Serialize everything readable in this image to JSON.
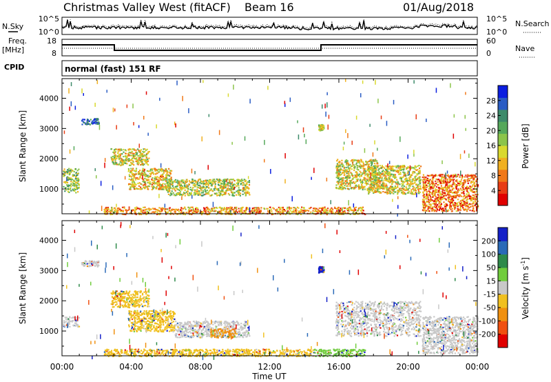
{
  "header": {
    "station": "Christmas Valley West (fitACF)",
    "beam": "Beam 16",
    "date": "01/Aug/2018"
  },
  "top_panels": {
    "nsky_label": "N.Sky",
    "nsearch_label": "N.Search",
    "noise_ticks": [
      "10^5",
      "10^0"
    ],
    "freq_label_1": "Freq.",
    "freq_label_2": "[MHz]",
    "freq_ticks": [
      "18",
      "8"
    ],
    "nave_label": "Nave",
    "nave_ticks": [
      "60",
      "0"
    ],
    "cpid_label": "CPID",
    "cpid_value": "normal (fast) 151 RF"
  },
  "chart_data": [
    {
      "type": "heatmap",
      "name": "power",
      "ylabel": "Slant Range [km]",
      "ylim": [
        180,
        4650
      ],
      "yticks": [
        "1000",
        "2000",
        "3000",
        "4000"
      ],
      "xlim_hours": [
        0,
        24
      ],
      "colorbar_label": "Power [dB]",
      "colorbar_ticks": [
        "28",
        "24",
        "20",
        "16",
        "12",
        "8",
        "4"
      ],
      "colorbar_colors": [
        "#0b1ee0",
        "#2a5cc4",
        "#3d8a6a",
        "#55a85a",
        "#8cc44a",
        "#d9d92e",
        "#f0b020",
        "#f07818",
        "#e83c14",
        "#e00000"
      ],
      "regions": [
        {
          "t0": 0.05,
          "t1": 0.95,
          "r0": 900,
          "r1": 1700,
          "v": 0.45
        },
        {
          "t0": 1.1,
          "t1": 2.1,
          "r0": 3150,
          "r1": 3350,
          "v": 0.15
        },
        {
          "t0": 2.8,
          "t1": 5.0,
          "r0": 1800,
          "r1": 2350,
          "v": 0.55
        },
        {
          "t0": 3.8,
          "t1": 6.3,
          "r0": 1000,
          "r1": 1700,
          "v": 0.6
        },
        {
          "t0": 6.0,
          "t1": 10.8,
          "r0": 800,
          "r1": 1350,
          "v": 0.5
        },
        {
          "t0": 14.8,
          "t1": 15.1,
          "r0": 2950,
          "r1": 3150,
          "v": 0.5
        },
        {
          "t0": 15.8,
          "t1": 18.2,
          "r0": 1000,
          "r1": 2000,
          "v": 0.55
        },
        {
          "t0": 17.6,
          "t1": 20.7,
          "r0": 850,
          "r1": 1800,
          "v": 0.55
        },
        {
          "t0": 20.8,
          "t1": 24.0,
          "r0": 280,
          "r1": 1500,
          "v": 0.75
        },
        {
          "t0": 2.4,
          "t1": 17.5,
          "r0": 180,
          "r1": 420,
          "v": 0.7
        }
      ]
    },
    {
      "type": "heatmap",
      "name": "velocity",
      "ylabel": "Slant Range [km]",
      "ylim": [
        180,
        4650
      ],
      "yticks": [
        "1000",
        "2000",
        "3000",
        "4000"
      ],
      "xlim_hours": [
        0,
        24
      ],
      "xticks": [
        "00:00",
        "04:00",
        "08:00",
        "12:00",
        "16:00",
        "20:00",
        "00:00"
      ],
      "xlabel": "Time UT",
      "colorbar_label": "Velocity [m s",
      "colorbar_label_exp": "-1",
      "colorbar_label_end": "]",
      "colorbar_ticks": [
        "200",
        "100",
        "50",
        "15",
        "-15",
        "-50",
        "-100",
        "-200"
      ],
      "colorbar_colors": [
        "#1420c8",
        "#2a6ab8",
        "#2e8a4a",
        "#70cc3c",
        "#c8c8c8",
        "#f0c020",
        "#f09010",
        "#f05010",
        "#e00000"
      ],
      "regions": [
        {
          "t0": 0.05,
          "t1": 0.95,
          "r0": 1150,
          "r1": 1500,
          "c": "#c8c8c8"
        },
        {
          "t0": 1.1,
          "t1": 2.1,
          "r0": 3150,
          "r1": 3350,
          "c": "#c8c8c8"
        },
        {
          "t0": 2.8,
          "t1": 5.0,
          "r0": 1800,
          "r1": 2350,
          "c": "#f0c020"
        },
        {
          "t0": 3.8,
          "t1": 6.5,
          "r0": 1000,
          "r1": 1700,
          "c": "#f0c020"
        },
        {
          "t0": 6.5,
          "t1": 10.8,
          "r0": 800,
          "r1": 1350,
          "c": "#c8c8c8"
        },
        {
          "t0": 8.5,
          "t1": 10.0,
          "r0": 800,
          "r1": 1100,
          "c": "#f09010"
        },
        {
          "t0": 14.8,
          "t1": 15.1,
          "r0": 2950,
          "r1": 3150,
          "c": "#1420c8"
        },
        {
          "t0": 15.8,
          "t1": 20.7,
          "r0": 850,
          "r1": 2000,
          "c": "#c8c8c8"
        },
        {
          "t0": 20.8,
          "t1": 24.0,
          "r0": 280,
          "r1": 1500,
          "c": "#c8c8c8"
        },
        {
          "t0": 2.4,
          "t1": 14.5,
          "r0": 180,
          "r1": 420,
          "c": "#f0c020"
        },
        {
          "t0": 14.5,
          "t1": 17.5,
          "r0": 180,
          "r1": 420,
          "c": "#70cc3c"
        }
      ]
    }
  ]
}
